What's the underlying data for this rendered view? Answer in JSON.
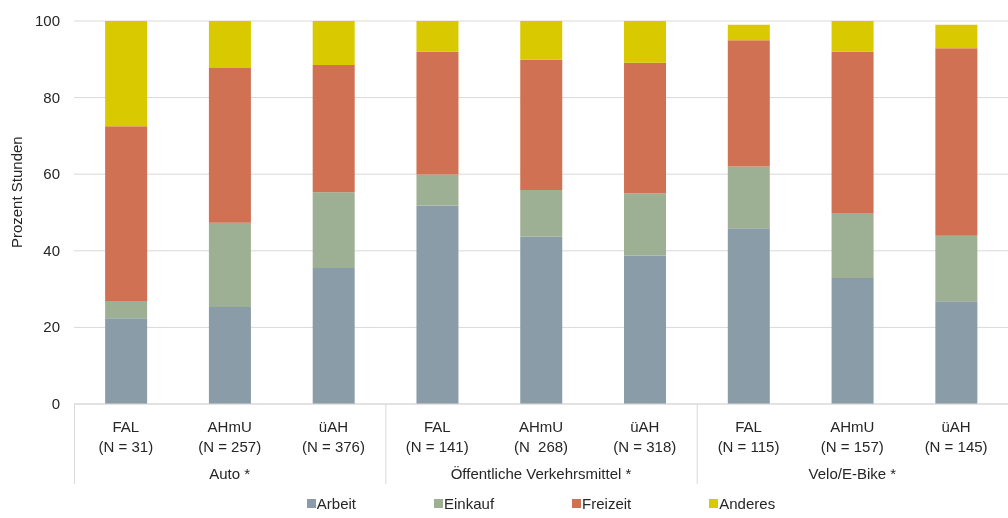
{
  "chart_data": {
    "type": "bar",
    "stacked": true,
    "ylabel": "Prozent Stunden",
    "categories": [
      "FAL\n(N = 31)",
      "AHmU\n(N = 257)",
      "üAH\n(N = 376)",
      "FAL\n(N = 141)",
      "AHmU\n(N  268)",
      "üAH\n(N = 318)",
      "FAL\n(N = 115)",
      "AHmU\n(N = 157)",
      "üAH\n(N = 145)"
    ],
    "series": [
      {
        "name": "Arbeit",
        "color": "#8a9ca7",
        "values": [
          22.4,
          25.3,
          35.5,
          51.8,
          43.7,
          38.8,
          45.9,
          32.9,
          26.8
        ]
      },
      {
        "name": "Einkauf",
        "color": "#9eb093",
        "values": [
          4.5,
          22.0,
          19.8,
          8.1,
          12.2,
          16.2,
          16.1,
          17.0,
          17.1
        ]
      },
      {
        "name": "Freizeit",
        "color": "#d07153",
        "values": [
          45.6,
          40.4,
          33.2,
          32.1,
          34.0,
          34.1,
          33.0,
          42.1,
          49.0
        ]
      },
      {
        "name": "Anderes",
        "color": "#d9c900",
        "values": [
          27.5,
          12.3,
          11.5,
          8.0,
          10.1,
          10.9,
          4.0,
          8.0,
          6.1
        ]
      }
    ],
    "ylim": [
      0,
      100
    ],
    "yticks": [
      0,
      20,
      40,
      60,
      80,
      100
    ],
    "grid": "y",
    "legend": "bottom",
    "annotations": [
      "Auto *",
      "Öffentliche Verkehrsmittel *",
      "Velo/E-Bike *"
    ]
  }
}
